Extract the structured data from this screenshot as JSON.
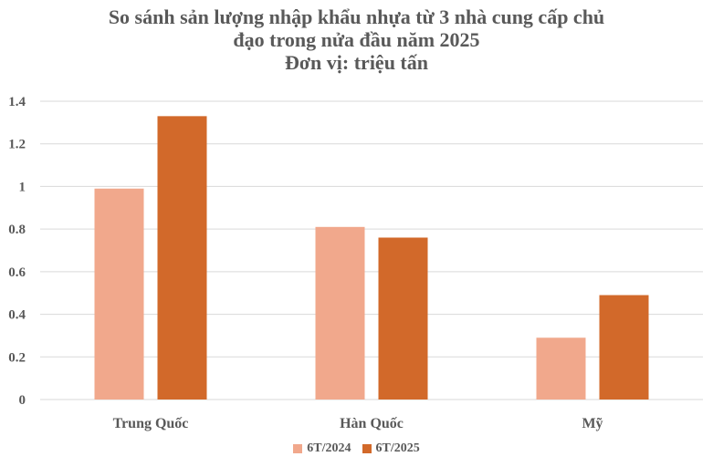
{
  "chart_data": {
    "type": "bar",
    "title_lines": [
      "So sánh sản lượng nhập khẩu nhựa từ 3 nhà cung cấp chủ",
      "đạo trong nửa đầu năm 2025",
      "Đơn vị: triệu tấn"
    ],
    "categories": [
      "Trung Quốc",
      "Hàn Quốc",
      "Mỹ"
    ],
    "series": [
      {
        "name": "6T/2024",
        "color": "#F1A88C",
        "values": [
          0.99,
          0.81,
          0.29
        ]
      },
      {
        "name": "6T/2025",
        "color": "#D2692A",
        "values": [
          1.33,
          0.76,
          0.49
        ]
      }
    ],
    "ylim": [
      0,
      1.4
    ],
    "yticks": [
      "0",
      "0.2",
      "0.4",
      "0.6",
      "0.8",
      "1",
      "1.2",
      "1.4"
    ],
    "grid": true,
    "legend_position": "bottom"
  }
}
